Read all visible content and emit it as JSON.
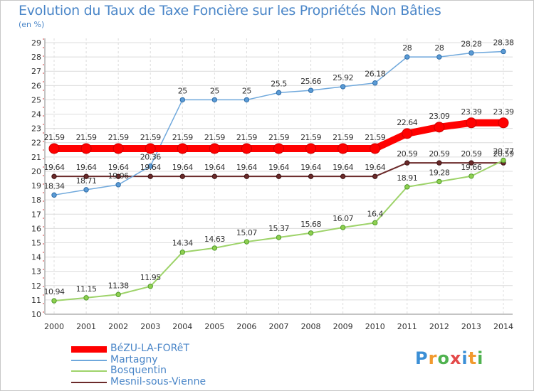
{
  "title": "Evolution du Taux de Taxe Foncière sur les Propriétés Non Bâties",
  "subtitle": "(en %)",
  "logo": {
    "text": "Proxiti",
    "colors": [
      "#3b8fd6",
      "#f29a2e",
      "#4fb24f",
      "#e34a4a",
      "#3b8fd6",
      "#f29a2e",
      "#4fb24f"
    ]
  },
  "chart_data": {
    "type": "line",
    "title": "Evolution du Taux de Taxe Foncière sur les Propriétés Non Bâties",
    "ylabel": "(en %)",
    "xlabel": "",
    "ylim": [
      10,
      29
    ],
    "yticks": [
      "10",
      "11",
      "12",
      "13",
      "14",
      "15",
      "16",
      "17",
      "18",
      "19",
      "20",
      "21",
      "22",
      "23",
      "24",
      "25",
      "26",
      "27",
      "28",
      "29"
    ],
    "categories": [
      "2000",
      "2001",
      "2002",
      "2003",
      "2004",
      "2005",
      "2006",
      "2007",
      "2008",
      "2009",
      "2010",
      "2011",
      "2012",
      "2013",
      "2014"
    ],
    "series": [
      {
        "name": "Mesnil-sous-Vienne",
        "color": "#6b2a2a",
        "values": [
          19.64,
          19.64,
          19.64,
          19.64,
          19.64,
          19.64,
          19.64,
          19.64,
          19.64,
          19.64,
          19.64,
          20.59,
          20.59,
          20.59,
          20.59
        ],
        "labels": [
          "19.64",
          "19.64",
          "19.64",
          "19.64",
          "19.64",
          "19.64",
          "19.64",
          "19.64",
          "19.64",
          "19.64",
          "19.64",
          "20.59",
          "20.59",
          "20.59",
          "20.59"
        ]
      },
      {
        "name": "Bosquentin",
        "color": "#9ed36a",
        "values": [
          10.94,
          11.15,
          11.38,
          11.95,
          14.34,
          14.63,
          15.07,
          15.37,
          15.68,
          16.07,
          16.4,
          18.91,
          19.28,
          19.66,
          20.77
        ],
        "labels": [
          "10.94",
          "11.15",
          "11.38",
          "11.95",
          "14.34",
          "14.63",
          "15.07",
          "15.37",
          "15.68",
          "16.07",
          "16.4",
          "18.91",
          "19.28",
          "19.66",
          "20.77"
        ]
      },
      {
        "name": "Martagny",
        "color": "#6fa8dc",
        "values": [
          18.34,
          18.71,
          19.06,
          20.36,
          25,
          25,
          25,
          25.5,
          25.66,
          25.92,
          26.18,
          28,
          28,
          28.28,
          28.38
        ],
        "labels": [
          "18.34",
          "18.71",
          "19.06",
          "20.36",
          "25",
          "25",
          "25",
          "25.5",
          "25.66",
          "25.92",
          "26.18",
          "28",
          "28",
          "28.28",
          "28.38"
        ]
      },
      {
        "name": "BéZU-LA-FORêT",
        "color": "#ff0000",
        "values": [
          21.59,
          21.59,
          21.59,
          21.59,
          21.59,
          21.59,
          21.59,
          21.59,
          21.59,
          21.59,
          21.59,
          22.64,
          23.09,
          23.39,
          23.39
        ],
        "labels": [
          "21.59",
          "21.59",
          "21.59",
          "21.59",
          "21.59",
          "21.59",
          "21.59",
          "21.59",
          "21.59",
          "21.59",
          "21.59",
          "22.64",
          "23.09",
          "23.39",
          "23.39"
        ]
      }
    ],
    "legend": [
      "BéZU-LA-FORêT",
      "Martagny",
      "Bosquentin",
      "Mesnil-sous-Vienne"
    ],
    "grid": true,
    "legend_position": "bottom-left"
  }
}
